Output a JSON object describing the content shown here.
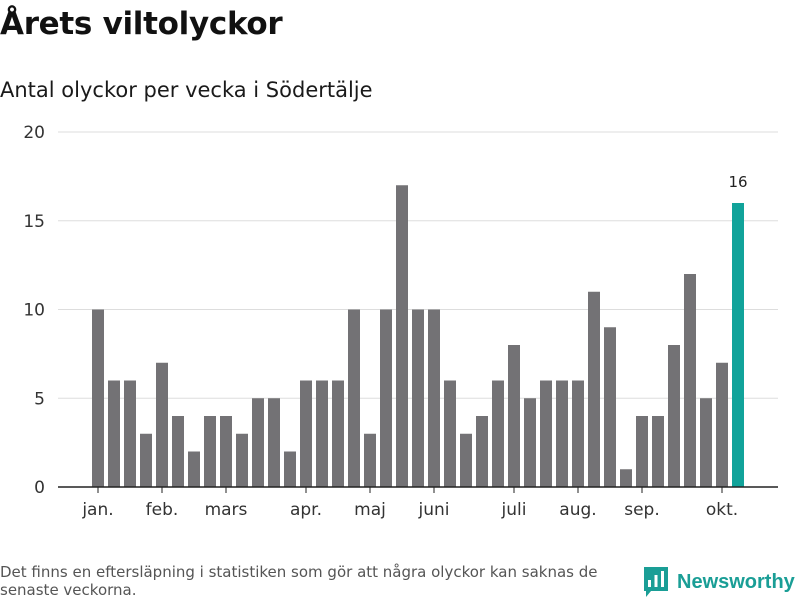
{
  "header": {
    "title": "Årets viltolyckor",
    "subtitle": "Antal olyckor per vecka i Södertälje"
  },
  "footer": {
    "note": "Det finns en eftersläpning i statistiken som gör att några olyckor kan saknas de senaste veckorna.",
    "brand": "Newsworthy"
  },
  "colors": {
    "bar": "#737275",
    "highlight": "#11a39a",
    "grid": "#dddddd",
    "axis": "#222222",
    "brand": "#1a9e96"
  },
  "chart_data": {
    "type": "bar",
    "title": "Antal olyckor per vecka i Södertälje",
    "xlabel": "",
    "ylabel": "",
    "ylim": [
      0,
      20
    ],
    "yticks": [
      0,
      5,
      10,
      15,
      20
    ],
    "weeks": [
      1,
      2,
      3,
      4,
      5,
      6,
      7,
      8,
      9,
      10,
      11,
      12,
      13,
      14,
      15,
      16,
      17,
      18,
      19,
      20,
      21,
      22,
      23,
      24,
      25,
      26,
      27,
      28,
      29,
      30,
      31,
      32,
      33,
      34,
      35,
      36,
      37,
      38,
      39,
      40,
      41
    ],
    "values": [
      10,
      6,
      6,
      3,
      7,
      4,
      2,
      4,
      4,
      3,
      5,
      5,
      2,
      6,
      6,
      6,
      10,
      3,
      10,
      17,
      10,
      10,
      6,
      3,
      4,
      6,
      8,
      5,
      6,
      6,
      6,
      11,
      9,
      1,
      4,
      4,
      8,
      12,
      5,
      7,
      16
    ],
    "highlight_index": 40,
    "highlight_label": "16",
    "month_labels": [
      {
        "label": "jan.",
        "week": 1
      },
      {
        "label": "feb.",
        "week": 5
      },
      {
        "label": "mars",
        "week": 9
      },
      {
        "label": "apr.",
        "week": 14
      },
      {
        "label": "maj",
        "week": 18
      },
      {
        "label": "juni",
        "week": 22
      },
      {
        "label": "juli",
        "week": 27
      },
      {
        "label": "aug.",
        "week": 31
      },
      {
        "label": "sep.",
        "week": 35
      },
      {
        "label": "okt.",
        "week": 40
      }
    ]
  }
}
